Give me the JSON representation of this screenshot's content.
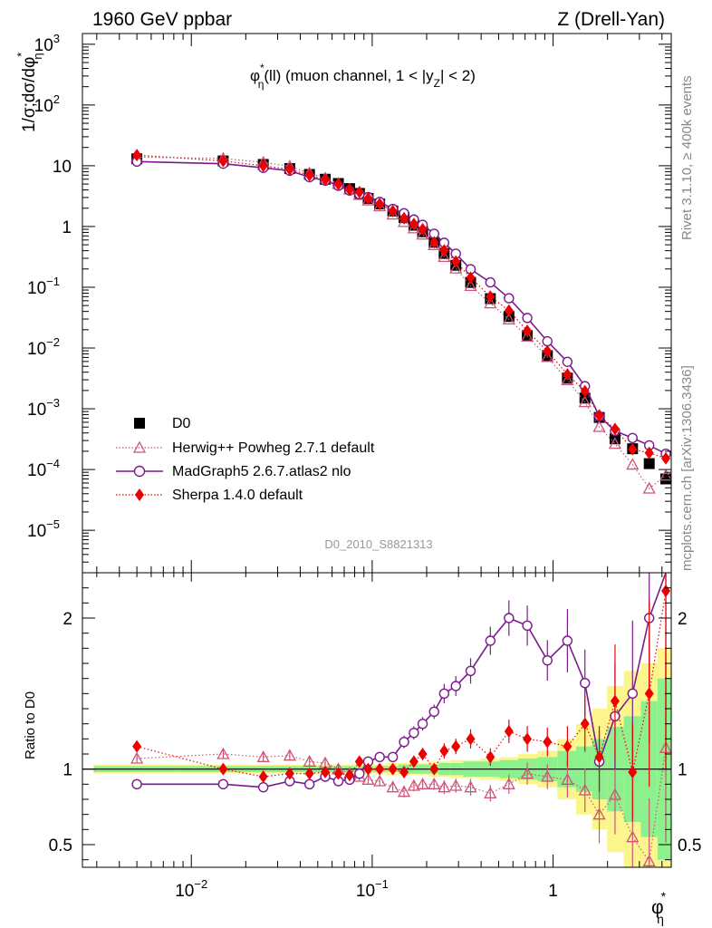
{
  "header": {
    "left": "1960 GeV ppbar",
    "right": "Z (Drell-Yan)",
    "side_top": "Rivet 3.1.10, ≥ 400k events",
    "side_bottom": "mcplots.cern.ch [arXiv:1306.3436]",
    "watermark": "D0_2010_S8821313"
  },
  "chart_data": {
    "type": "line",
    "title": "φ*η(ll) (muon channel, 1 < |yZ| < 2)",
    "title_parts": {
      "phi": "φ",
      "star": "*",
      "eta": "η",
      "rest": "(ll) (muon channel, 1 < |y",
      "z": "Z",
      "end": "| < 2)"
    },
    "xlabel": {
      "phi": "φ",
      "star": "*",
      "eta": "η"
    },
    "ylabel": "1/σ;dσ/dφ*η",
    "ylabel_parts": {
      "main": "1/σ;dσ/dφ",
      "star": "*",
      "eta": "η"
    },
    "ratio_ylabel": "Ratio to D0",
    "x_scale": "log",
    "xlim": [
      0.0025,
      4.5
    ],
    "ylim": [
      2e-06,
      1500
    ],
    "ratio_ylim": [
      0.35,
      2.3
    ],
    "x_ticks": [
      {
        "base": "10",
        "exp": "−2",
        "value": 0.01
      },
      {
        "base": "10",
        "exp": "−1",
        "value": 0.1
      },
      {
        "base": "1",
        "exp": "",
        "value": 1
      }
    ],
    "y_ticks": [
      {
        "value": 1e-05,
        "base": "10",
        "exp": "−5"
      },
      {
        "value": 0.0001,
        "base": "10",
        "exp": "−4"
      },
      {
        "value": 0.001,
        "base": "10",
        "exp": "−3"
      },
      {
        "value": 0.01,
        "base": "10",
        "exp": "−2"
      },
      {
        "value": 0.1,
        "base": "10",
        "exp": "−1"
      },
      {
        "value": 1,
        "base": "1",
        "exp": ""
      },
      {
        "value": 10,
        "base": "10",
        "exp": ""
      },
      {
        "value": 100,
        "base": "10",
        "exp": "2"
      },
      {
        "value": 1000,
        "base": "10",
        "exp": "3"
      }
    ],
    "ratio_ticks": [
      {
        "value": 0.5,
        "label": "0.5"
      },
      {
        "value": 1,
        "label": "1"
      },
      {
        "value": 2,
        "label": "2"
      }
    ],
    "x": [
      0.005,
      0.015,
      0.025,
      0.035,
      0.045,
      0.055,
      0.065,
      0.075,
      0.085,
      0.095,
      0.11,
      0.13,
      0.15,
      0.17,
      0.19,
      0.22,
      0.25,
      0.29,
      0.35,
      0.45,
      0.57,
      0.72,
      0.93,
      1.2,
      1.5,
      1.8,
      2.2,
      2.75,
      3.4,
      4.2
    ],
    "series": [
      {
        "name": "D0",
        "style": "data",
        "color": "#000000",
        "values": [
          13.0,
          12.0,
          10.5,
          9.0,
          7.2,
          6.0,
          5.1,
          4.2,
          3.5,
          2.9,
          2.35,
          1.8,
          1.4,
          1.05,
          0.82,
          0.55,
          0.36,
          0.23,
          0.12,
          0.065,
          0.033,
          0.016,
          0.0075,
          0.0032,
          0.0015,
          0.00072,
          0.00032,
          0.00022,
          0.000125,
          7e-05
        ],
        "band_stat": [
          0.02,
          0.02,
          0.02,
          0.02,
          0.02,
          0.02,
          0.02,
          0.02,
          0.02,
          0.02,
          0.02,
          0.02,
          0.03,
          0.03,
          0.03,
          0.03,
          0.04,
          0.04,
          0.05,
          0.05,
          0.06,
          0.07,
          0.08,
          0.12,
          0.15,
          0.2,
          0.28,
          0.35,
          0.45,
          0.6
        ],
        "band_tot": [
          0.03,
          0.03,
          0.03,
          0.03,
          0.03,
          0.03,
          0.03,
          0.03,
          0.03,
          0.03,
          0.03,
          0.04,
          0.04,
          0.04,
          0.04,
          0.05,
          0.05,
          0.06,
          0.06,
          0.07,
          0.08,
          0.1,
          0.12,
          0.2,
          0.3,
          0.4,
          0.55,
          0.65,
          0.7,
          0.8
        ]
      },
      {
        "name": "Herwig++ Powheg 2.7.1 default",
        "style": "dotted-triangle",
        "color": "#cc5577",
        "ratio": [
          1.07,
          1.1,
          1.08,
          1.09,
          1.05,
          1.04,
          1.0,
          0.97,
          0.95,
          0.93,
          0.92,
          0.88,
          0.85,
          0.89,
          0.9,
          0.9,
          0.88,
          0.89,
          0.88,
          0.84,
          0.9,
          0.97,
          0.95,
          0.93,
          0.86,
          0.7,
          0.83,
          0.55,
          0.39,
          1.14
        ]
      },
      {
        "name": "MadGraph5 2.6.7.atlas2 nlo",
        "style": "solid-circle",
        "color": "#7b1a8c",
        "ratio": [
          0.9,
          0.9,
          0.88,
          0.92,
          0.9,
          0.95,
          0.92,
          0.93,
          0.97,
          1.05,
          1.08,
          1.08,
          1.18,
          1.24,
          1.3,
          1.38,
          1.5,
          1.55,
          1.65,
          1.85,
          2.0,
          1.95,
          1.72,
          1.85,
          1.57,
          1.05,
          1.35,
          1.5,
          2.0,
          2.6
        ]
      },
      {
        "name": "Sherpa 1.4.0 default",
        "style": "dotted-diamond",
        "color": "#ee0000",
        "ratio": [
          1.15,
          1.0,
          0.95,
          0.97,
          0.97,
          0.98,
          0.97,
          0.96,
          1.05,
          1.0,
          1.0,
          1.0,
          0.98,
          1.05,
          1.1,
          1.0,
          1.12,
          1.15,
          1.2,
          1.08,
          1.25,
          1.2,
          1.18,
          1.15,
          1.3,
          1.08,
          1.45,
          0.98,
          1.5,
          2.18
        ]
      }
    ]
  }
}
